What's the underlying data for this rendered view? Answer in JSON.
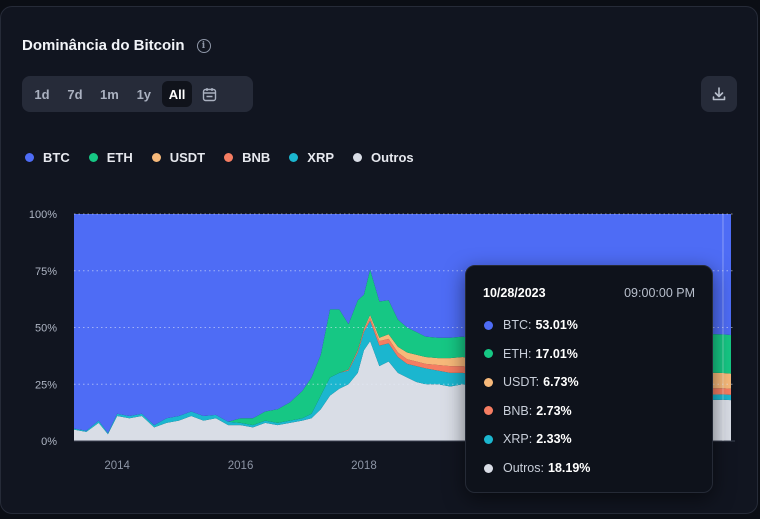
{
  "header": {
    "title": "Dominância do Bitcoin",
    "info_icon": "info-icon"
  },
  "range_buttons": [
    {
      "label": "1d",
      "active": false
    },
    {
      "label": "7d",
      "active": false
    },
    {
      "label": "1m",
      "active": false
    },
    {
      "label": "1y",
      "active": false
    },
    {
      "label": "All",
      "active": true
    }
  ],
  "toolbar": {
    "calendar_icon": "calendar-icon",
    "download_icon": "download-icon"
  },
  "colors": {
    "BTC": "#4e6cf5",
    "ETH": "#16c784",
    "USDT": "#f7b97a",
    "BNB": "#f57d62",
    "XRP": "#1bb6cf",
    "Outros": "#d9dde6"
  },
  "chart_data": {
    "type": "area",
    "stacked": true,
    "normalized_percent": true,
    "title": "Dominância do Bitcoin",
    "legend": [
      "BTC",
      "ETH",
      "USDT",
      "BNB",
      "XRP",
      "Outros"
    ],
    "legend_position": "top-left",
    "y_ticks": [
      "100%",
      "75%",
      "50%",
      "25%",
      "0%"
    ],
    "y_tick_values": [
      100,
      75,
      50,
      25,
      0
    ],
    "x_ticks": [
      "2014",
      "2016",
      "2018"
    ],
    "x_tick_values": [
      2014,
      2016,
      2018
    ],
    "xlim": [
      2013.3,
      2023.95
    ],
    "ylim": [
      0,
      100
    ],
    "grid": true,
    "x": [
      2013.3,
      2013.5,
      2013.7,
      2013.85,
      2014.0,
      2014.2,
      2014.4,
      2014.6,
      2014.8,
      2015.0,
      2015.2,
      2015.4,
      2015.6,
      2015.8,
      2016.0,
      2016.2,
      2016.4,
      2016.6,
      2016.8,
      2017.0,
      2017.15,
      2017.3,
      2017.45,
      2017.6,
      2017.75,
      2017.9,
      2018.0,
      2018.1,
      2018.25,
      2018.4,
      2018.55,
      2018.7,
      2018.85,
      2019.0,
      2019.2,
      2019.4,
      2019.6,
      2019.8,
      2020.0,
      2020.5,
      2021.0,
      2021.5,
      2022.0,
      2022.5,
      2023.0,
      2023.5,
      2023.82,
      2023.95
    ],
    "series": [
      {
        "name": "Outros",
        "values": [
          5,
          4,
          8,
          3,
          11,
          10,
          11,
          6,
          8,
          9,
          11,
          9,
          10,
          7,
          7,
          6,
          8,
          7,
          8,
          9,
          10,
          14,
          20,
          23,
          25,
          30,
          40,
          44,
          33,
          35,
          30,
          28,
          26,
          25,
          25,
          24,
          25,
          24,
          20,
          19,
          19,
          19,
          18,
          18,
          18,
          18,
          18.19,
          18
        ]
      },
      {
        "name": "XRP",
        "values": [
          0.5,
          0.5,
          1,
          0.5,
          1,
          1,
          1,
          1,
          2,
          2,
          2,
          2,
          1.5,
          1.5,
          1,
          1,
          1,
          1,
          1,
          1,
          2,
          6,
          8,
          7,
          6,
          9,
          8,
          9,
          9,
          8,
          7,
          6,
          7,
          7,
          6,
          6,
          5,
          5,
          5,
          4,
          4,
          3,
          3,
          3,
          2.5,
          2.4,
          2.33,
          2.3
        ]
      },
      {
        "name": "BNB",
        "values": [
          0,
          0,
          0,
          0,
          0,
          0,
          0,
          0,
          0,
          0,
          0,
          0,
          0,
          0,
          0,
          0,
          0,
          0,
          0,
          0,
          0,
          0,
          0,
          0,
          0.5,
          1,
          1,
          1.5,
          2,
          2,
          2,
          2,
          2,
          2,
          2.5,
          3,
          3,
          3,
          3,
          3,
          4,
          3.5,
          3.5,
          3,
          3,
          2.8,
          2.73,
          2.7
        ]
      },
      {
        "name": "USDT",
        "values": [
          0,
          0,
          0,
          0,
          0,
          0,
          0,
          0,
          0,
          0,
          0,
          0,
          0,
          0,
          0,
          0,
          0,
          0,
          0,
          0,
          0,
          0,
          0,
          0,
          0,
          0,
          0.5,
          1,
          1.5,
          2,
          2.5,
          3,
          3,
          3,
          3,
          3.5,
          4,
          4,
          4,
          5,
          5,
          6,
          7,
          8,
          7,
          7,
          6.73,
          6.7
        ]
      },
      {
        "name": "ETH",
        "values": [
          0,
          0,
          0,
          0,
          0,
          0,
          0,
          0,
          0,
          0,
          0,
          0,
          0,
          0,
          2,
          3,
          4,
          6,
          8,
          12,
          16,
          18,
          30,
          28,
          20,
          22,
          15,
          20,
          16,
          15,
          12,
          11,
          10,
          9,
          9,
          9,
          9,
          9,
          10,
          12,
          16,
          18,
          18,
          18,
          18,
          17,
          17.01,
          17
        ]
      },
      {
        "name": "BTC",
        "values": [
          94.5,
          95.5,
          91,
          96.5,
          88,
          89,
          88,
          93,
          90,
          89,
          87,
          89,
          88.5,
          91.5,
          90,
          90,
          87,
          86,
          83,
          78,
          72,
          62,
          42,
          42,
          48.5,
          38,
          35.5,
          24.5,
          38.5,
          38,
          46.5,
          50,
          52,
          54,
          54.5,
          54.5,
          54,
          55,
          58,
          57,
          52,
          50.5,
          50.5,
          50,
          51.5,
          52.8,
          53.01,
          53.3
        ]
      }
    ]
  },
  "tooltip": {
    "date": "10/28/2023",
    "time": "09:00:00 PM",
    "x": 2023.82,
    "rows": [
      {
        "name": "BTC",
        "value": "53.01%"
      },
      {
        "name": "ETH",
        "value": "17.01%"
      },
      {
        "name": "USDT",
        "value": "6.73%"
      },
      {
        "name": "BNB",
        "value": "2.73%"
      },
      {
        "name": "XRP",
        "value": "2.33%"
      },
      {
        "name": "Outros",
        "value": "18.19%"
      }
    ]
  }
}
